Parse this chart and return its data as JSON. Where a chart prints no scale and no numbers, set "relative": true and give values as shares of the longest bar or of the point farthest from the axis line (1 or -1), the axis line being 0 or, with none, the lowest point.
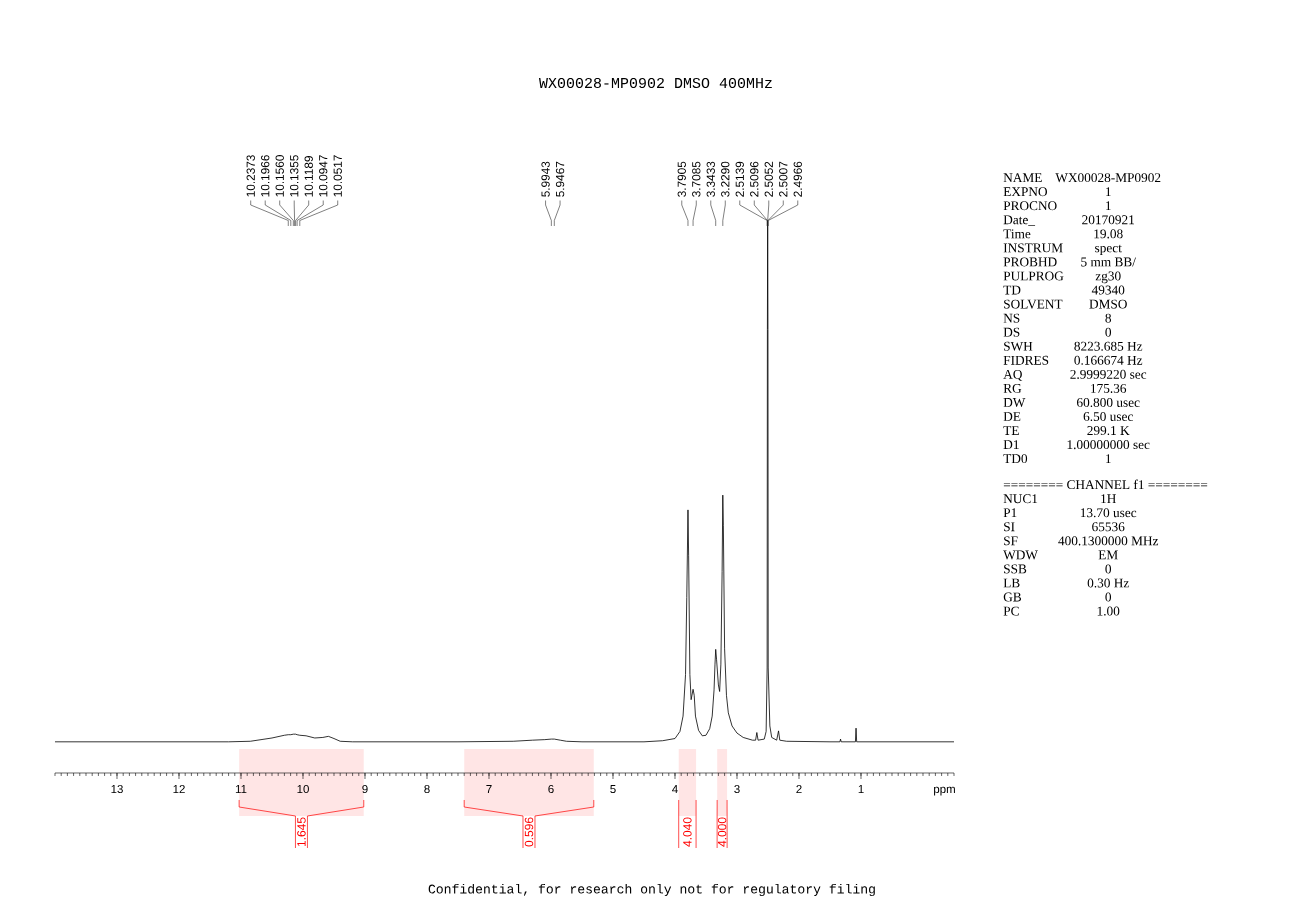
{
  "chart_data": [
    {
      "type": "line",
      "title": "WX00028-MP0902 DMSO 400MHz",
      "xlabel": "ppm",
      "relative": true,
      "xlim": [
        14,
        -0.5
      ],
      "xticks": [
        13,
        12,
        11,
        10,
        9,
        8,
        7,
        6,
        5,
        4,
        3,
        2,
        1
      ],
      "color": "#000000",
      "x": [
        14.0,
        11.2,
        10.85,
        10.5,
        10.3,
        10.2373,
        10.1966,
        10.156,
        10.1355,
        10.1189,
        10.0947,
        10.0517,
        9.95,
        9.81,
        9.68,
        9.59,
        9.5,
        9.4,
        9.2,
        7.5,
        6.61,
        6.3,
        6.1,
        5.9943,
        5.9467,
        5.85,
        5.75,
        5.5,
        4.5,
        4.2,
        4.0,
        3.92,
        3.87,
        3.83,
        3.81,
        3.7905,
        3.78,
        3.76,
        3.74,
        3.7085,
        3.69,
        3.67,
        3.62,
        3.56,
        3.5,
        3.44,
        3.4,
        3.37,
        3.355,
        3.3433,
        3.33,
        3.3,
        3.28,
        3.26,
        3.24,
        3.229,
        3.22,
        3.2,
        3.17,
        3.14,
        3.08,
        3.0,
        2.9,
        2.75,
        2.7,
        2.68,
        2.66,
        2.56,
        2.53,
        2.5139,
        2.5096,
        2.5052,
        2.5007,
        2.4966,
        2.47,
        2.44,
        2.36,
        2.33,
        2.31,
        2.2,
        1.5,
        1.34,
        1.33,
        1.32,
        1.09,
        1.08,
        1.07,
        0.7,
        -0.5
      ],
      "values": [
        0.057,
        0.057,
        0.058,
        0.064,
        0.069,
        0.07,
        0.07,
        0.071,
        0.071,
        0.071,
        0.07,
        0.069,
        0.068,
        0.064,
        0.065,
        0.067,
        0.063,
        0.058,
        0.057,
        0.057,
        0.058,
        0.06,
        0.061,
        0.062,
        0.062,
        0.06,
        0.058,
        0.057,
        0.057,
        0.059,
        0.063,
        0.076,
        0.104,
        0.18,
        0.321,
        0.481,
        0.397,
        0.18,
        0.134,
        0.153,
        0.142,
        0.104,
        0.078,
        0.068,
        0.069,
        0.081,
        0.104,
        0.152,
        0.199,
        0.226,
        0.208,
        0.161,
        0.149,
        0.199,
        0.368,
        0.508,
        0.453,
        0.227,
        0.142,
        0.11,
        0.086,
        0.073,
        0.065,
        0.06,
        0.06,
        0.074,
        0.06,
        0.062,
        0.076,
        0.192,
        0.811,
        1.0,
        0.811,
        0.192,
        0.086,
        0.065,
        0.06,
        0.077,
        0.06,
        0.058,
        0.057,
        0.057,
        0.062,
        0.057,
        0.057,
        0.082,
        0.057,
        0.057,
        0.057
      ],
      "bands": [
        {
          "axis": "x",
          "from": 11.03,
          "to": 9.02,
          "label": "1.645",
          "color": "#ff0000"
        },
        {
          "axis": "x",
          "from": 7.4,
          "to": 5.31,
          "label": "0.596",
          "color": "#ff0000"
        },
        {
          "axis": "x",
          "from": 3.94,
          "to": 3.66,
          "label": "4.040",
          "color": "#ff0000"
        },
        {
          "axis": "x",
          "from": 3.32,
          "to": 3.16,
          "label": "4.000",
          "color": "#ff0000"
        }
      ],
      "annotations": [
        {
          "text": "10.2373",
          "x": 10.2373
        },
        {
          "text": "10.1966",
          "x": 10.1966
        },
        {
          "text": "10.1560",
          "x": 10.156
        },
        {
          "text": "10.1355",
          "x": 10.1355
        },
        {
          "text": "10.1189",
          "x": 10.1189
        },
        {
          "text": "10.0947",
          "x": 10.0947
        },
        {
          "text": "10.0517",
          "x": 10.0517
        },
        {
          "text": "5.9943",
          "x": 5.9943
        },
        {
          "text": "5.9467",
          "x": 5.9467
        },
        {
          "text": "3.7905",
          "x": 3.7905
        },
        {
          "text": "3.7085",
          "x": 3.7085
        },
        {
          "text": "3.3433",
          "x": 3.3433
        },
        {
          "text": "3.2290",
          "x": 3.229
        },
        {
          "text": "2.5139",
          "x": 2.5139
        },
        {
          "text": "2.5096",
          "x": 2.5096
        },
        {
          "text": "2.5052",
          "x": 2.5052
        },
        {
          "text": "2.5007",
          "x": 2.5007
        },
        {
          "text": "2.4966",
          "x": 2.4966
        },
        "Confidential, for research only not for regulatory filing"
      ]
    },
    {
      "type": "other",
      "categories": [
        "NAME",
        "EXPNO",
        "PROCNO",
        "Date_",
        "Time",
        "INSTRUM",
        "PROBHD",
        "PULPROG",
        "TD",
        "SOLVENT",
        "NS",
        "DS",
        "SWH",
        "FIDRES",
        "AQ",
        "RG",
        "DW",
        "DE",
        "TE",
        "D1",
        "TD0"
      ],
      "value_labels": [
        "WX00028-MP0902",
        "1",
        "1",
        "20170921",
        "19.08",
        "spect",
        "5 mm BB/",
        "zg30",
        "49340",
        "DMSO",
        "8",
        "0",
        "8223.685 Hz",
        "0.166674 Hz",
        "2.9999220 sec",
        "175.36",
        "60.800 usec",
        "6.50 usec",
        "299.1 K",
        "1.00000000 sec",
        "1"
      ]
    },
    {
      "type": "other",
      "title": "======== CHANNEL f1 ========",
      "categories": [
        "NUC1",
        "P1",
        "SI",
        "SF",
        "WDW",
        "SSB",
        "LB",
        "GB",
        "PC"
      ],
      "value_labels": [
        "1H",
        "13.70 usec",
        "65536",
        "400.1300000 MHz",
        "EM",
        "0",
        "0.30 Hz",
        "0",
        "1.00"
      ]
    }
  ]
}
